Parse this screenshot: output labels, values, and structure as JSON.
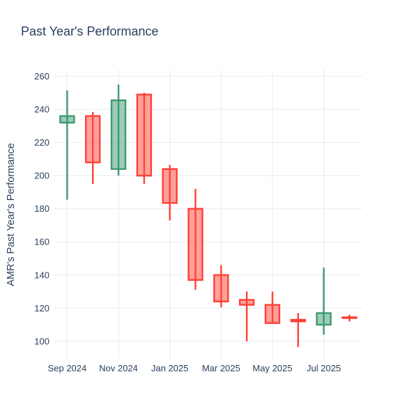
{
  "chart_data": {
    "type": "candlestick",
    "title": "Past Year's Performance",
    "ylabel": "AMR's Past Year's Performance",
    "xlabel": "",
    "ylim": [
      89,
      264
    ],
    "y_ticks": [
      100,
      120,
      140,
      160,
      180,
      200,
      220,
      240,
      260
    ],
    "x_ticks": [
      {
        "index": 0,
        "label": "Sep 2024"
      },
      {
        "index": 2,
        "label": "Nov 2024"
      },
      {
        "index": 4,
        "label": "Jan 2025"
      },
      {
        "index": 6,
        "label": "Mar 2025"
      },
      {
        "index": 8,
        "label": "May 2025"
      },
      {
        "index": 10,
        "label": "Jul 2025"
      }
    ],
    "grid": true,
    "legend": false,
    "colors": {
      "increasing": "#3D9970",
      "decreasing": "#FF4136",
      "grid": "#EBF0F8",
      "text": "#2A3F5F",
      "background": "#FFFFFF"
    },
    "candles": [
      {
        "x": "Sep 2024",
        "open": 232,
        "high": 251.5,
        "low": 185.5,
        "close": 236
      },
      {
        "x": "Oct 2024",
        "open": 236,
        "high": 238.5,
        "low": 195,
        "close": 208
      },
      {
        "x": "Nov 2024",
        "open": 204,
        "high": 255,
        "low": 200,
        "close": 245.5
      },
      {
        "x": "Dec 2024",
        "open": 249,
        "high": 250,
        "low": 195,
        "close": 200
      },
      {
        "x": "Jan 2025",
        "open": 204,
        "high": 206.5,
        "low": 173,
        "close": 183.5
      },
      {
        "x": "Feb 2025",
        "open": 180,
        "high": 192,
        "low": 131,
        "close": 137
      },
      {
        "x": "Mar 2025",
        "open": 140,
        "high": 146,
        "low": 120.5,
        "close": 124
      },
      {
        "x": "Apr 2025",
        "open": 125,
        "high": 130,
        "low": 100,
        "close": 122
      },
      {
        "x": "May 2025",
        "open": 122,
        "high": 130,
        "low": 111,
        "close": 111
      },
      {
        "x": "Jun 2025",
        "open": 113,
        "high": 117,
        "low": 96.5,
        "close": 112
      },
      {
        "x": "Jul 2025",
        "open": 110,
        "high": 144.5,
        "low": 104,
        "close": 117
      },
      {
        "x": "Aug 2025",
        "open": 114.5,
        "high": 116,
        "low": 112,
        "close": 114
      }
    ]
  }
}
